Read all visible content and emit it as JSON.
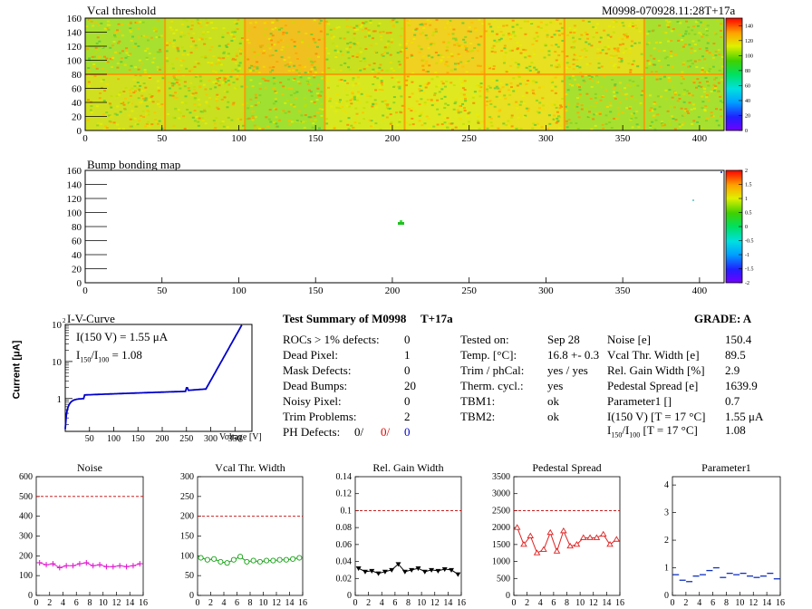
{
  "module_id": "M0998-070928.11:28T+17a",
  "vcal_map": {
    "title": "Vcal threshold",
    "x_ticks": [
      "0",
      "50",
      "100",
      "150",
      "200",
      "250",
      "300",
      "350",
      "400"
    ],
    "y_ticks": [
      "0",
      "20",
      "40",
      "60",
      "80",
      "100",
      "120",
      "140",
      "160"
    ],
    "z_ticks": [
      "0",
      "20",
      "40",
      "60",
      "80",
      "100",
      "120",
      "140"
    ],
    "xlim": [
      0,
      416
    ],
    "ylim": [
      0,
      160
    ],
    "zlim": [
      0,
      150
    ]
  },
  "bump_map": {
    "title": "Bump bonding map",
    "x_ticks": [
      "0",
      "50",
      "100",
      "150",
      "200",
      "250",
      "300",
      "350",
      "400"
    ],
    "y_ticks": [
      "0",
      "20",
      "40",
      "60",
      "80",
      "100",
      "120",
      "140",
      "160"
    ],
    "z_ticks": [
      "-2",
      "-1.5",
      "-1",
      "-0.5",
      "0",
      "0.5",
      "1",
      "1.5",
      "2"
    ],
    "xlim": [
      0,
      416
    ],
    "ylim": [
      0,
      160
    ],
    "zlim": [
      -2,
      2
    ]
  },
  "iv_curve": {
    "title": "I-V-Curve",
    "i150": "I(150 V) = 1.55 μA",
    "ratio_label": "I",
    "ratio_sub1": "150",
    "ratio_slash": "/I",
    "ratio_sub2": "100",
    "ratio_value": " =  1.08",
    "ylabel": "Current [μA]",
    "xlabel": "Voltage [V]",
    "x_ticks": [
      "50",
      "100",
      "150",
      "200",
      "250",
      "300",
      "350"
    ],
    "y_ticks": [
      "1",
      "10",
      "10"
    ],
    "y_top_exp": "2"
  },
  "summary": {
    "title": "Test Summary of M0998",
    "tag": "T+17a",
    "grade": "GRADE:  A",
    "left": [
      {
        "label": "ROCs > 1% defects:",
        "value": "0"
      },
      {
        "label": "Dead Pixel:",
        "value": "1"
      },
      {
        "label": "Mask Defects:",
        "value": "0"
      },
      {
        "label": "Dead Bumps:",
        "value": "20"
      },
      {
        "label": "Noisy Pixel:",
        "value": "0"
      },
      {
        "label": "Trim Problems:",
        "value": "2"
      }
    ],
    "ph_label": "PH Defects:",
    "ph_values": [
      "0/",
      "0/",
      "0"
    ],
    "middle": [
      {
        "label": "Tested on:",
        "value": "Sep 28"
      },
      {
        "label": "Temp. [°C]:",
        "value": "16.8 +- 0.3"
      },
      {
        "label": "Trim / phCal:",
        "value": "yes / yes"
      },
      {
        "label": "Therm. cycl.:",
        "value": "yes"
      },
      {
        "label": "TBM1:",
        "value": "ok"
      },
      {
        "label": "TBM2:",
        "value": "ok"
      }
    ],
    "right": [
      {
        "label": "Noise [e]",
        "value": "150.4"
      },
      {
        "label": "Vcal Thr. Width [e]",
        "value": "89.5"
      },
      {
        "label": "Rel. Gain Width [%]",
        "value": "2.9"
      },
      {
        "label": "Pedestal Spread [e]",
        "value": "1639.9"
      },
      {
        "label": "Parameter1 []",
        "value": "0.7"
      },
      {
        "label": "I(150 V) [T = 17 °C]",
        "value": "1.55 μA"
      }
    ],
    "ratio_row": {
      "label_main": "I",
      "sub1": "150",
      "slash": "/I",
      "sub2": "100",
      "rest": "  [T = 17 °C]",
      "value": "1.08"
    }
  },
  "chart_data": [
    {
      "type": "line",
      "title": "Noise",
      "marker": "plus",
      "color": "#e020d0",
      "x": [
        0,
        1,
        2,
        3,
        4,
        5,
        6,
        7,
        8,
        9,
        10,
        11,
        12,
        13,
        14,
        15
      ],
      "values": [
        165,
        155,
        160,
        140,
        150,
        150,
        160,
        165,
        150,
        155,
        145,
        145,
        150,
        145,
        150,
        160
      ],
      "threshold": 500,
      "xlim": [
        0,
        16
      ],
      "ylim": [
        0,
        600
      ],
      "x_ticks": [
        "0",
        "2",
        "4",
        "6",
        "8",
        "10",
        "12",
        "14",
        "16"
      ],
      "y_ticks": [
        "0",
        "100",
        "200",
        "300",
        "400",
        "500",
        "600"
      ]
    },
    {
      "type": "line",
      "title": "Vcal Thr. Width",
      "marker": "circle",
      "color": "#10a010",
      "x": [
        0,
        1,
        2,
        3,
        4,
        5,
        6,
        7,
        8,
        9,
        10,
        11,
        12,
        13,
        14,
        15
      ],
      "values": [
        95,
        90,
        92,
        85,
        82,
        90,
        98,
        85,
        88,
        85,
        88,
        88,
        90,
        90,
        92,
        95
      ],
      "threshold": 200,
      "xlim": [
        0,
        16
      ],
      "ylim": [
        0,
        300
      ],
      "x_ticks": [
        "0",
        "2",
        "4",
        "6",
        "8",
        "10",
        "12",
        "14",
        "16"
      ],
      "y_ticks": [
        "0",
        "50",
        "100",
        "150",
        "200",
        "250",
        "300"
      ]
    },
    {
      "type": "line",
      "title": "Rel. Gain Width",
      "marker": "triangle-down",
      "color": "#000000",
      "x": [
        0,
        1,
        2,
        3,
        4,
        5,
        6,
        7,
        8,
        9,
        10,
        11,
        12,
        13,
        14,
        15
      ],
      "values": [
        0.032,
        0.028,
        0.029,
        0.026,
        0.028,
        0.03,
        0.037,
        0.028,
        0.03,
        0.032,
        0.028,
        0.03,
        0.029,
        0.031,
        0.03,
        0.025
      ],
      "threshold": 0.1,
      "xlim": [
        0,
        16
      ],
      "ylim": [
        0,
        0.14
      ],
      "x_ticks": [
        "0",
        "2",
        "4",
        "6",
        "8",
        "10",
        "12",
        "14",
        "16"
      ],
      "y_ticks": [
        "0",
        "0.02",
        "0.04",
        "0.06",
        "0.08",
        "0.1",
        "0.12",
        "0.14"
      ]
    },
    {
      "type": "line",
      "title": "Pedestal Spread",
      "marker": "triangle-up",
      "color": "#e02020",
      "x": [
        0,
        1,
        2,
        3,
        4,
        5,
        6,
        7,
        8,
        9,
        10,
        11,
        12,
        13,
        14,
        15
      ],
      "values": [
        2000,
        1500,
        1750,
        1250,
        1350,
        1850,
        1300,
        1900,
        1450,
        1500,
        1700,
        1700,
        1700,
        1800,
        1500,
        1650
      ],
      "threshold": 2500,
      "xlim": [
        0,
        16
      ],
      "ylim": [
        0,
        3500
      ],
      "x_ticks": [
        "0",
        "2",
        "4",
        "6",
        "8",
        "10",
        "12",
        "14",
        "16"
      ],
      "y_ticks": [
        "0",
        "500",
        "1000",
        "1500",
        "2000",
        "2500",
        "3000",
        "3500"
      ]
    },
    {
      "type": "line",
      "title": "Parameter1",
      "marker": "dash",
      "color": "#1030c0",
      "x": [
        0,
        1,
        2,
        3,
        4,
        5,
        6,
        7,
        8,
        9,
        10,
        11,
        12,
        13,
        14,
        15
      ],
      "values": [
        0.75,
        0.55,
        0.5,
        0.7,
        0.75,
        0.9,
        1.0,
        0.65,
        0.8,
        0.75,
        0.8,
        0.7,
        0.65,
        0.7,
        0.8,
        0.6
      ],
      "threshold": null,
      "xlim": [
        0,
        16
      ],
      "ylim": [
        0,
        4.3
      ],
      "x_ticks": [
        "0",
        "2",
        "4",
        "6",
        "8",
        "10",
        "12",
        "14",
        "16"
      ],
      "y_ticks": [
        "0",
        "1",
        "2",
        "3",
        "4"
      ]
    }
  ]
}
